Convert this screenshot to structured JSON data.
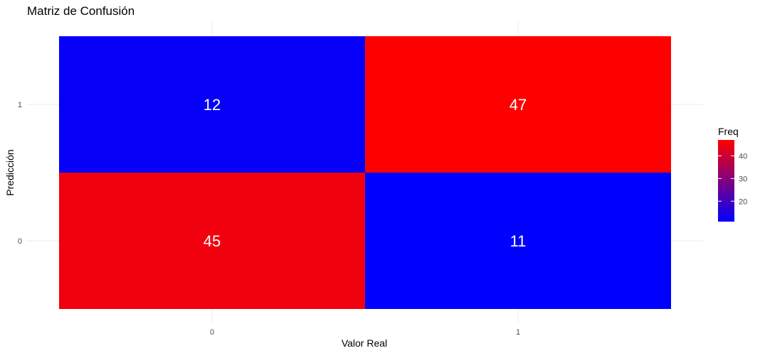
{
  "chart_data": {
    "type": "heatmap",
    "title": "Matriz de Confusión",
    "xlabel": "Valor Real",
    "ylabel": "Predicción",
    "x_categories": [
      "0",
      "1"
    ],
    "y_categories": [
      "0",
      "1"
    ],
    "cells": [
      {
        "x": "0",
        "y": "1",
        "value": 12
      },
      {
        "x": "1",
        "y": "1",
        "value": 47
      },
      {
        "x": "0",
        "y": "0",
        "value": 45
      },
      {
        "x": "1",
        "y": "0",
        "value": 11
      }
    ],
    "colors": {
      "low": "#0000ff",
      "high": "#ff0000",
      "label": "#ffffff"
    },
    "grid": true,
    "legend": {
      "title": "Freq",
      "placement": "right",
      "ticks": [
        20,
        30,
        40
      ],
      "range": [
        11,
        47
      ]
    }
  }
}
